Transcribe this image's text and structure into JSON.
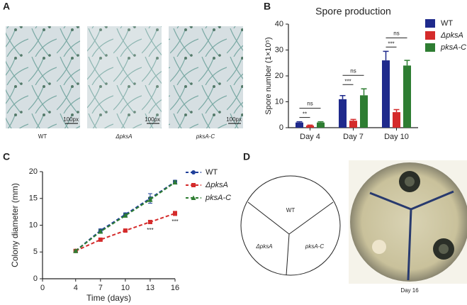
{
  "panels": {
    "a": {
      "letter": "A",
      "captions": [
        "WT",
        "ΔpksA",
        "pksA-C"
      ],
      "scale_labels": [
        "100px",
        "100px",
        "100px"
      ]
    },
    "b": {
      "letter": "B"
    },
    "c": {
      "letter": "C"
    },
    "d": {
      "letter": "D",
      "sector_labels": [
        "WT",
        "ΔpksA",
        "pksA-C"
      ],
      "caption": "Day 16"
    }
  },
  "chart_data": [
    {
      "type": "bar",
      "title": "Spore production",
      "y_label": "Spore number (1×10⁵)",
      "categories": [
        "Day 4",
        "Day 7",
        "Day 10"
      ],
      "series": [
        {
          "name": "WT",
          "color": "#1f2a8c",
          "values": [
            2,
            11,
            26
          ],
          "errors": [
            0.3,
            1.4,
            3.5
          ]
        },
        {
          "name": "ΔpksA",
          "color": "#d42b2b",
          "values": [
            0.8,
            2.7,
            6
          ],
          "errors": [
            0.2,
            0.5,
            1
          ]
        },
        {
          "name": "pksA-C",
          "color": "#2e7d32",
          "values": [
            2,
            12.5,
            24
          ],
          "errors": [
            0.3,
            2.5,
            2
          ]
        }
      ],
      "significance": [
        [
          "**",
          "ns"
        ],
        [
          "***",
          "ns"
        ],
        [
          "***",
          "ns"
        ]
      ],
      "ylim": [
        0,
        40
      ],
      "yticks": [
        0,
        10,
        20,
        30,
        40
      ],
      "legend": "right"
    },
    {
      "type": "line",
      "x_label": "Time (days)",
      "y_label": "Colony diameter (mm)",
      "x": [
        4,
        7,
        10,
        13,
        16
      ],
      "series": [
        {
          "name": "WT",
          "color": "#1f3f99",
          "marker": "circle",
          "values": [
            5.2,
            9,
            12,
            15,
            18.1
          ],
          "errors": [
            0.2,
            0.3,
            0.3,
            0.9,
            0.3
          ]
        },
        {
          "name": "ΔpksA",
          "color": "#d42b2b",
          "marker": "square",
          "values": [
            5.2,
            7.3,
            9,
            10.6,
            12.2
          ],
          "errors": [
            0.2,
            0.2,
            0.2,
            0.3,
            0.4
          ]
        },
        {
          "name": "pksA-C",
          "color": "#2e7d32",
          "marker": "triangle",
          "values": [
            5.2,
            8.8,
            11.8,
            14.8,
            18
          ],
          "errors": [
            0.2,
            0.3,
            0.3,
            0.4,
            0.3
          ]
        }
      ],
      "annotations": [
        {
          "x": 13,
          "text": "***"
        },
        {
          "x": 16,
          "text": "***"
        }
      ],
      "xlim": [
        0,
        16
      ],
      "xticks": [
        0,
        4,
        7,
        10,
        13,
        16
      ],
      "ylim": [
        0,
        20
      ],
      "yticks": [
        0,
        5,
        10,
        15,
        20
      ],
      "legend": "upper right"
    }
  ]
}
